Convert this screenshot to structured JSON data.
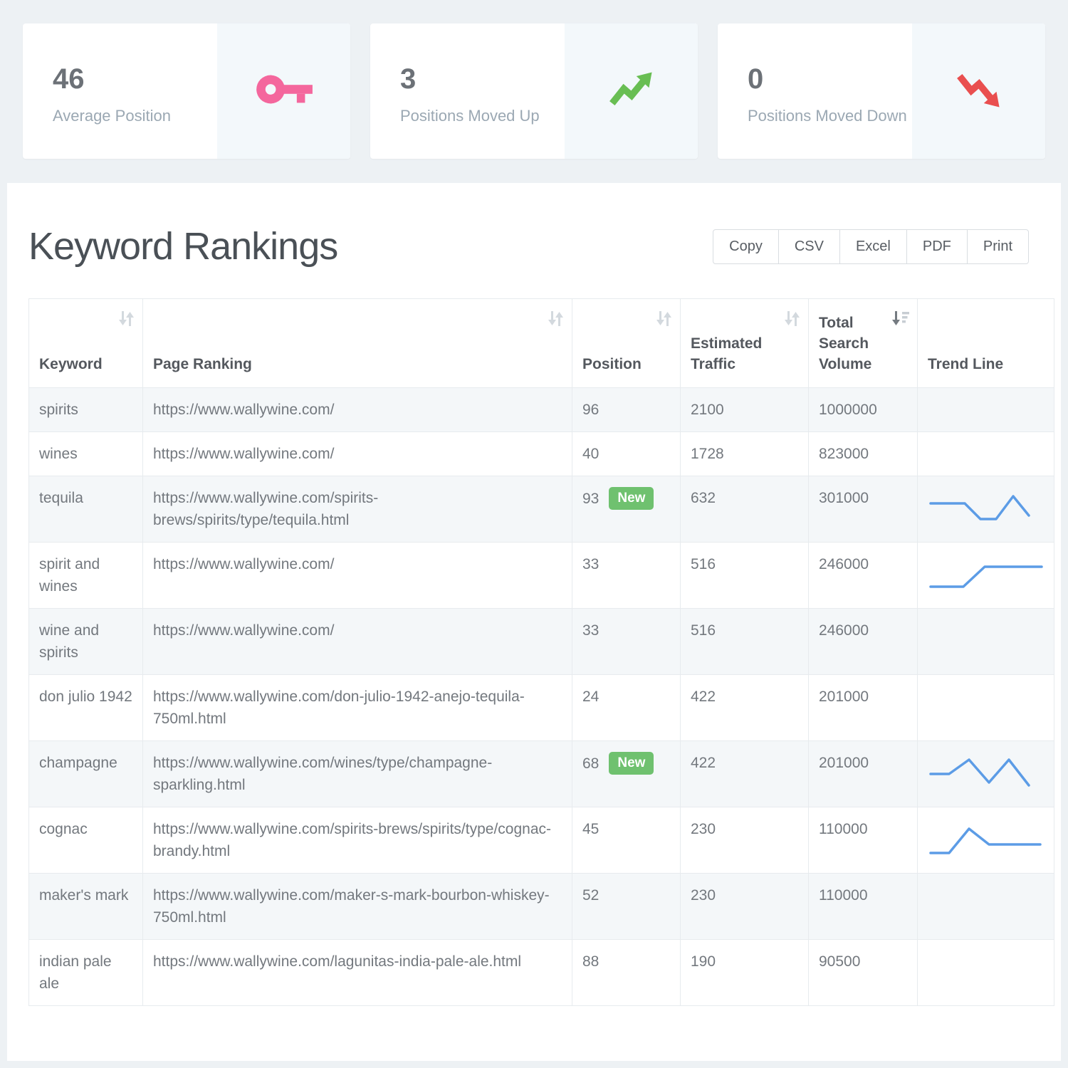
{
  "colors": {
    "pink": "#f4679d",
    "green": "#68be53",
    "red": "#e94f4f",
    "badge_green": "#6fc16f",
    "sparkline_blue": "#5c9ce6"
  },
  "cards": [
    {
      "value": "46",
      "label": "Average Position",
      "icon": "key-icon"
    },
    {
      "value": "3",
      "label": "Positions Moved Up",
      "icon": "trend-up-icon"
    },
    {
      "value": "0",
      "label": "Positions Moved Down",
      "icon": "trend-down-icon"
    }
  ],
  "panel": {
    "title": "Keyword Rankings",
    "buttons": {
      "copy": "Copy",
      "csv": "CSV",
      "excel": "Excel",
      "pdf": "PDF",
      "print": "Print"
    }
  },
  "table": {
    "columns": [
      {
        "label": "Keyword",
        "sort": "both"
      },
      {
        "label": "Page Ranking",
        "sort": "both"
      },
      {
        "label": "Position",
        "sort": "both"
      },
      {
        "label": "Estimated Traffic",
        "sort": "both"
      },
      {
        "label": "Total Search Volume",
        "sort": "desc-active"
      },
      {
        "label": "Trend Line",
        "sort": "none"
      }
    ],
    "rows": [
      {
        "keyword": "spirits",
        "url": "https://www.wallywine.com/",
        "position": "96",
        "badge": null,
        "traffic": "2100",
        "volume": "1000000",
        "trend": null
      },
      {
        "keyword": "wines",
        "url": "https://www.wallywine.com/",
        "position": "40",
        "badge": null,
        "traffic": "1728",
        "volume": "823000",
        "trend": null
      },
      {
        "keyword": "tequila",
        "url": "https://www.wallywine.com/spirits-brews/spirits/type/tequila.html",
        "position": "93",
        "badge": "New",
        "traffic": "632",
        "volume": "301000",
        "trend": [
          [
            4,
            20
          ],
          [
            52,
            20
          ],
          [
            74,
            42
          ],
          [
            96,
            42
          ],
          [
            120,
            10
          ],
          [
            142,
            37
          ]
        ]
      },
      {
        "keyword": "spirit and wines",
        "url": "https://www.wallywine.com/",
        "position": "33",
        "badge": null,
        "traffic": "516",
        "volume": "246000",
        "trend": [
          [
            4,
            44
          ],
          [
            50,
            44
          ],
          [
            80,
            16
          ],
          [
            160,
            16
          ]
        ]
      },
      {
        "keyword": "wine and spirits",
        "url": "https://www.wallywine.com/",
        "position": "33",
        "badge": null,
        "traffic": "516",
        "volume": "246000",
        "trend": null
      },
      {
        "keyword": "don julio 1942",
        "url": "https://www.wallywine.com/don-julio-1942-anejo-tequila-750ml.html",
        "position": "24",
        "badge": null,
        "traffic": "422",
        "volume": "201000",
        "trend": null
      },
      {
        "keyword": "champagne",
        "url": "https://www.wallywine.com/wines/type/champagne-sparkling.html",
        "position": "68",
        "badge": "New",
        "traffic": "422",
        "volume": "201000",
        "trend": [
          [
            4,
            28
          ],
          [
            30,
            28
          ],
          [
            58,
            8
          ],
          [
            86,
            40
          ],
          [
            114,
            8
          ],
          [
            142,
            44
          ]
        ]
      },
      {
        "keyword": "cognac",
        "url": "https://www.wallywine.com/spirits-brews/spirits/type/cognac-brandy.html",
        "position": "45",
        "badge": null,
        "traffic": "230",
        "volume": "110000",
        "trend": [
          [
            4,
            46
          ],
          [
            30,
            46
          ],
          [
            58,
            12
          ],
          [
            86,
            34
          ],
          [
            158,
            34
          ]
        ]
      },
      {
        "keyword": "maker's mark",
        "url": "https://www.wallywine.com/maker-s-mark-bourbon-whiskey-750ml.html",
        "position": "52",
        "badge": null,
        "traffic": "230",
        "volume": "110000",
        "trend": null
      },
      {
        "keyword": "indian pale ale",
        "url": "https://www.wallywine.com/lagunitas-india-pale-ale.html",
        "position": "88",
        "badge": null,
        "traffic": "190",
        "volume": "90500",
        "trend": null
      }
    ]
  },
  "chart_data": [
    {
      "type": "line",
      "label": "tequila trend",
      "units": "relative 0-100, no axes shown",
      "values": [
        66,
        66,
        28,
        28,
        83,
        37
      ]
    },
    {
      "type": "line",
      "label": "spirit and wines trend",
      "units": "relative 0-100, no axes shown",
      "values": [
        24,
        24,
        72,
        72
      ]
    },
    {
      "type": "line",
      "label": "champagne trend",
      "units": "relative 0-100, no axes shown",
      "values": [
        52,
        52,
        86,
        31,
        86,
        24
      ]
    },
    {
      "type": "line",
      "label": "cognac trend",
      "units": "relative 0-100, no axes shown",
      "values": [
        21,
        21,
        79,
        41,
        41
      ]
    }
  ]
}
